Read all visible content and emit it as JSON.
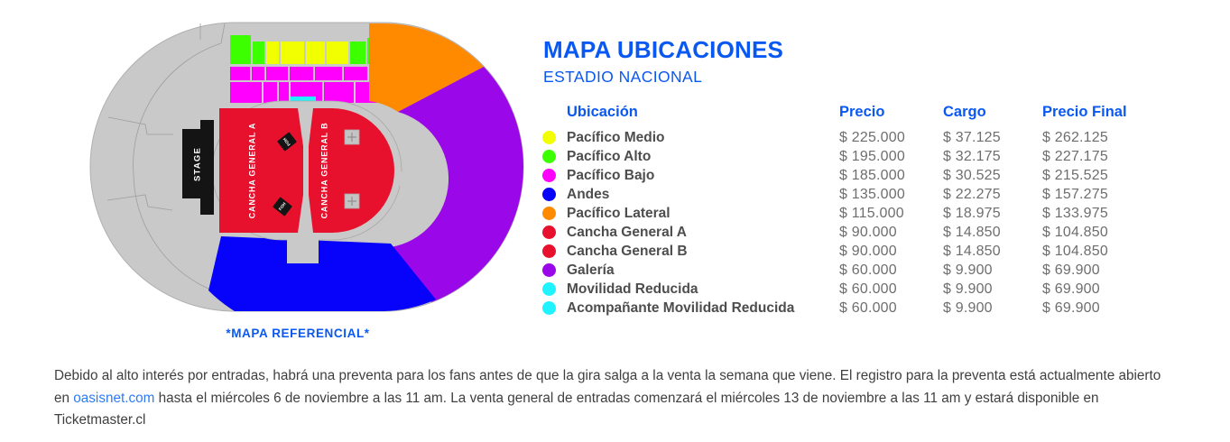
{
  "accent_blue": "#0A58F2",
  "map": {
    "caption": "*MAPA REFERENCIAL*",
    "stage_label": "STAGE",
    "cancha_a_label": "CANCHA GENERAL A",
    "cancha_b_label": "CANCHA GENERAL B",
    "foh_label": "FOH",
    "colors": {
      "gray": "#C9C9C9",
      "green": "#3CFF00",
      "yellow": "#F1FF00",
      "magenta": "#FF00FF",
      "cyan": "#1FF3FF",
      "orange": "#FF8A00",
      "purple": "#9A07E8",
      "blue": "#0702FA",
      "red": "#E8112D",
      "black": "#141414",
      "accent": "#0A58F2"
    }
  },
  "panel": {
    "title": "MAPA UBICACIONES",
    "subtitle": "ESTADIO NACIONAL",
    "table": {
      "headers": [
        "Ubicación",
        "Precio",
        "Cargo",
        "Precio Final"
      ],
      "rows": [
        {
          "label": "Pacífico Medio",
          "color": "#F1FF00",
          "precio": "$ 225.000",
          "cargo": "$ 37.125",
          "final": "$ 262.125"
        },
        {
          "label": "Pacífico Alto",
          "color": "#3CFF00",
          "precio": "$ 195.000",
          "cargo": "$ 32.175",
          "final": "$ 227.175"
        },
        {
          "label": "Pacífico Bajo",
          "color": "#FF00FF",
          "precio": "$ 185.000",
          "cargo": "$ 30.525",
          "final": "$ 215.525"
        },
        {
          "label": "Andes",
          "color": "#0702FA",
          "precio": "$ 135.000",
          "cargo": "$ 22.275",
          "final": "$ 157.275"
        },
        {
          "label": "Pacífico Lateral",
          "color": "#FF8A00",
          "precio": "$ 115.000",
          "cargo": "$ 18.975",
          "final": "$ 133.975"
        },
        {
          "label": "Cancha General A",
          "color": "#E8112D",
          "precio": "$ 90.000",
          "cargo": "$ 14.850",
          "final": "$ 104.850"
        },
        {
          "label": "Cancha General B",
          "color": "#E8112D",
          "precio": "$ 90.000",
          "cargo": "$ 14.850",
          "final": "$ 104.850"
        },
        {
          "label": "Galería",
          "color": "#9A07E8",
          "precio": "$ 60.000",
          "cargo": "$ 9.900",
          "final": "$ 69.900"
        },
        {
          "label": "Movilidad Reducida",
          "color": "#1FF3FF",
          "precio": "$ 60.000",
          "cargo": "$ 9.900",
          "final": "$ 69.900"
        },
        {
          "label": "Acompañante Movilidad Reducida",
          "color": "#1FF3FF",
          "precio": "$ 60.000",
          "cargo": "$ 9.900",
          "final": "$ 69.900"
        }
      ]
    }
  },
  "footer": {
    "before_link": "Debido al alto interés por entradas, habrá una preventa para los fans antes de que la gira salga a la venta la semana que viene. El registro para la preventa está actualmente abierto en ",
    "link": "oasisnet.com",
    "after_link": " hasta el miércoles 6 de noviembre a las 11 am. La venta general de entradas comenzará el miércoles 13 de noviembre a las 11 am y estará disponible en Ticketmaster.cl"
  }
}
